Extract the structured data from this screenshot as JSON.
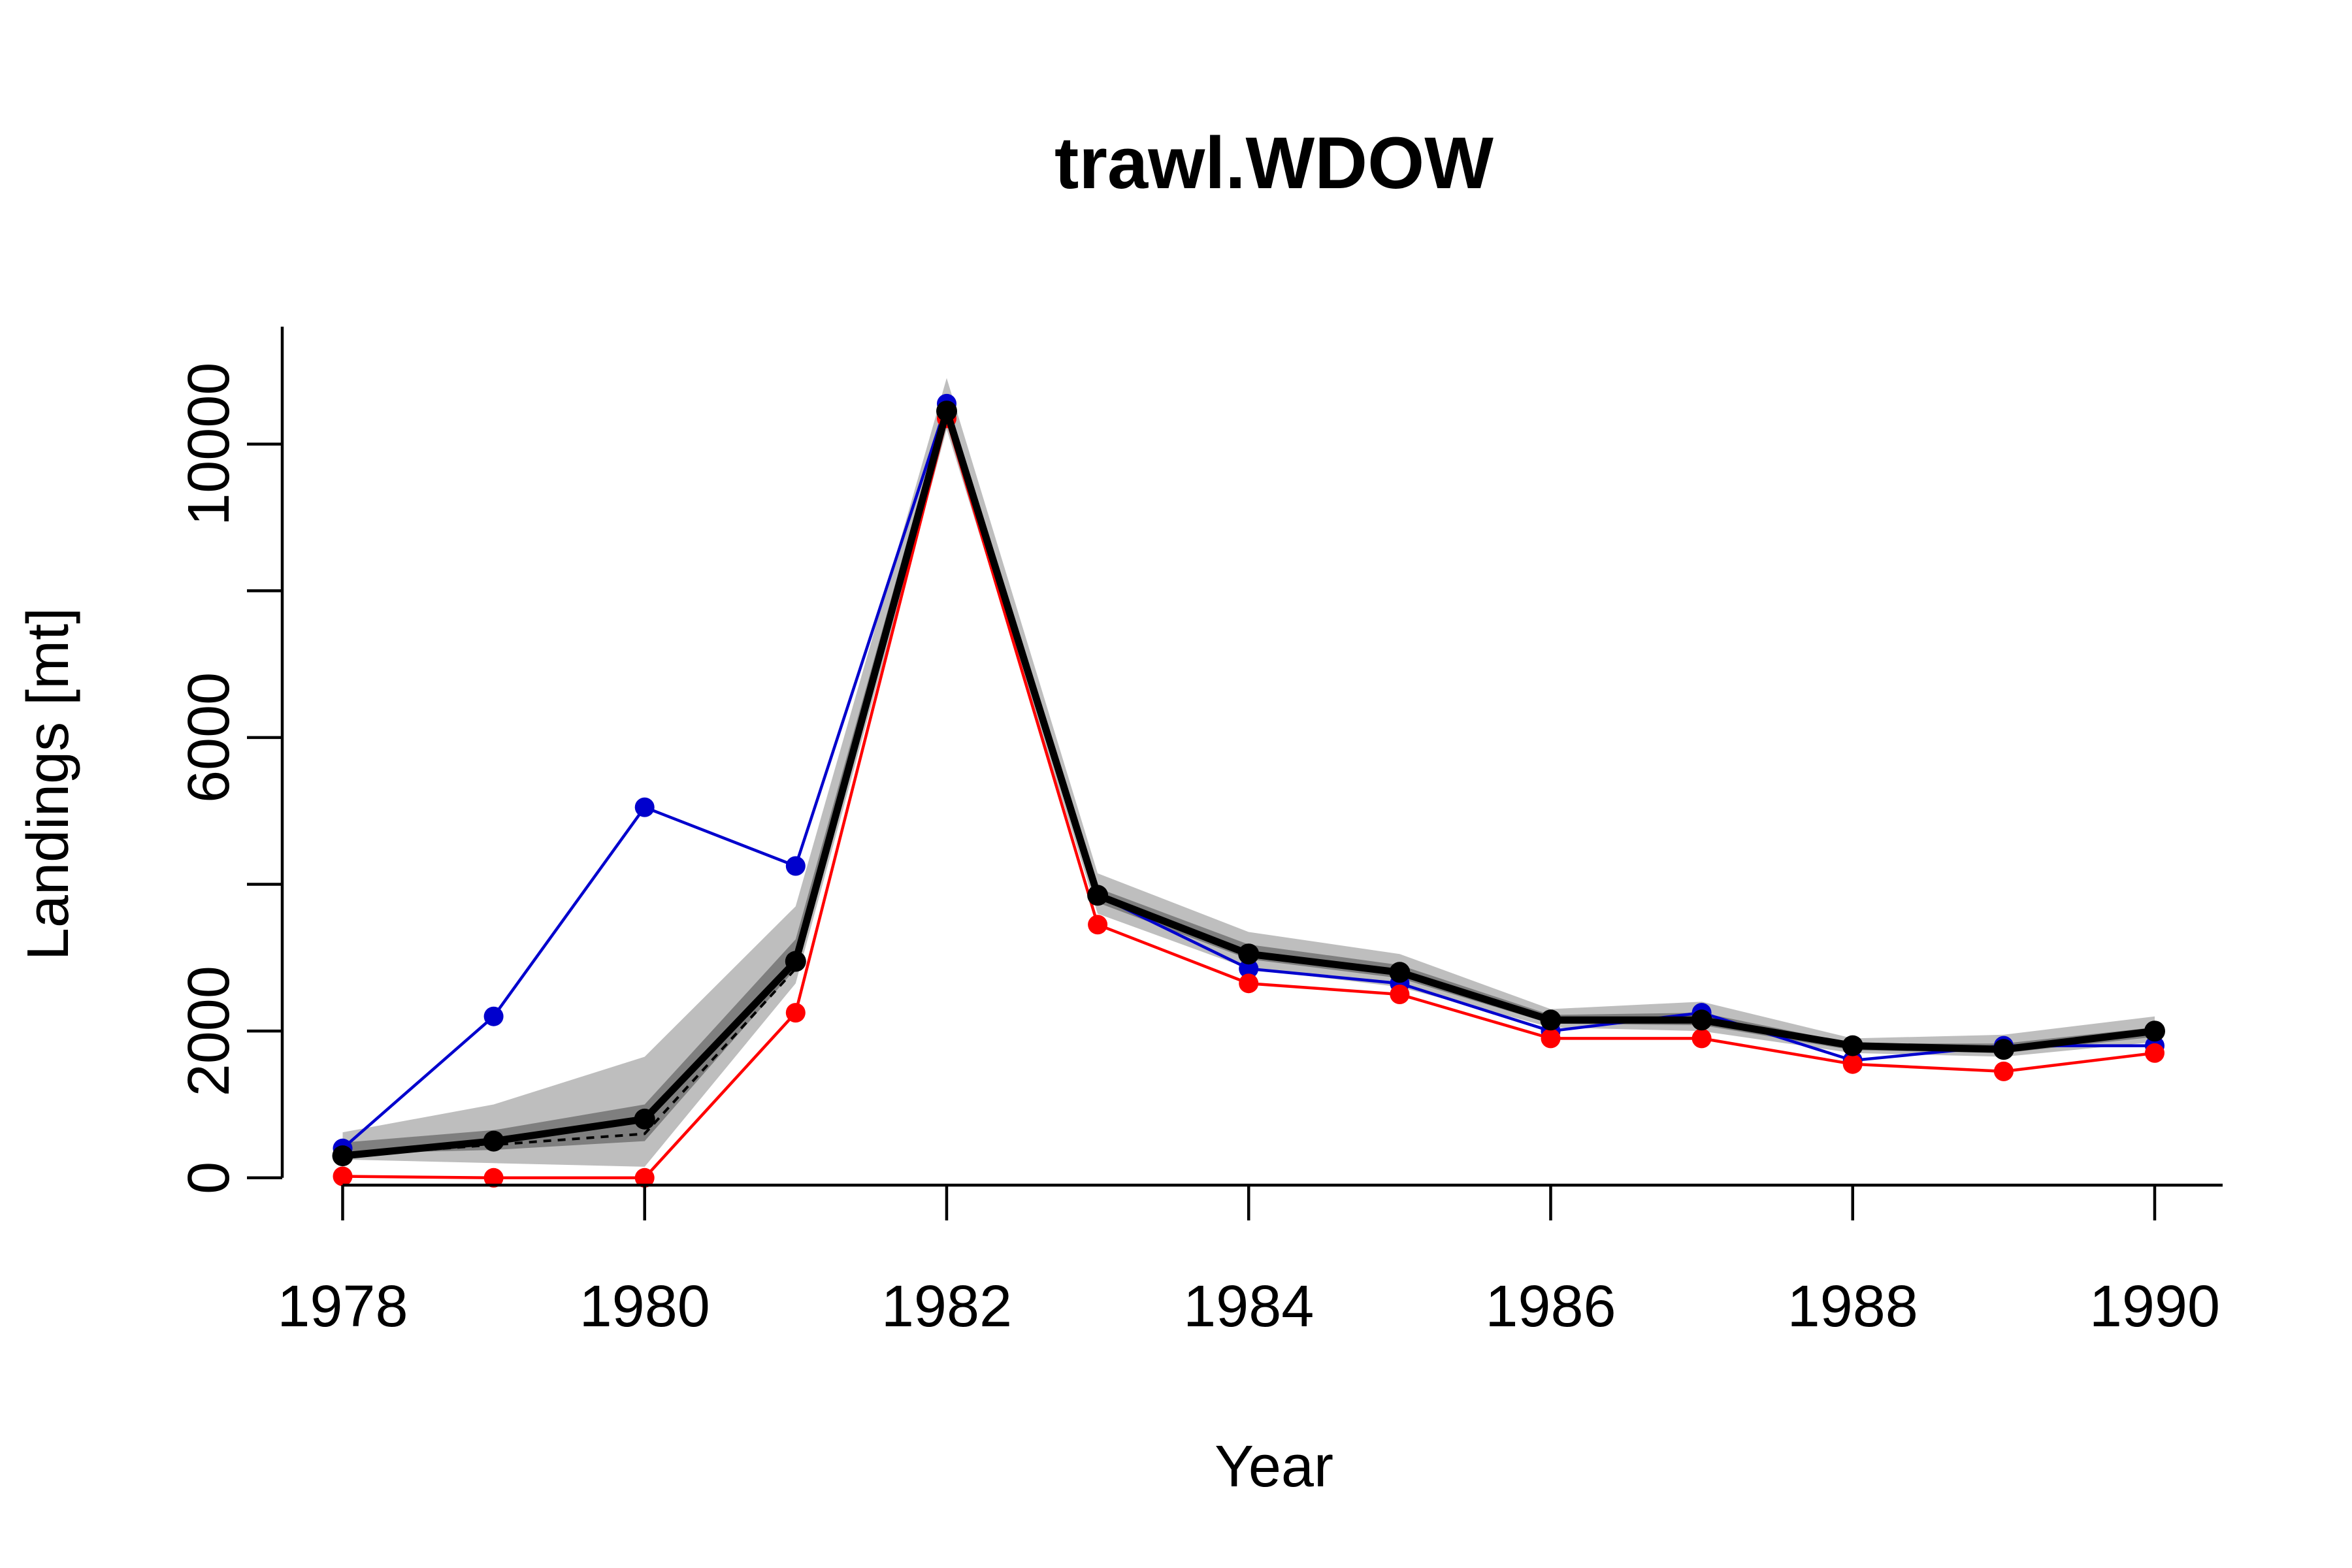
{
  "chart_data": {
    "type": "line",
    "title": "trawl.WDOW",
    "xlabel": "Year",
    "ylabel": "Landings [mt]",
    "xlim": [
      1977.6,
      1990.45
    ],
    "ylim": [
      -100,
      11600
    ],
    "x_ticks": [
      1978,
      1980,
      1982,
      1984,
      1986,
      1988,
      1990
    ],
    "x_tick_labels": [
      "1978",
      "1980",
      "1982",
      "1984",
      "1986",
      "1988",
      "1990"
    ],
    "y_ticks": [
      0,
      2000,
      4000,
      6000,
      8000,
      10000
    ],
    "y_tick_labels": [
      "0",
      "2000",
      "",
      "6000",
      "",
      "10000"
    ],
    "grid": false,
    "x": [
      1978,
      1979,
      1980,
      1981,
      1982,
      1983,
      1984,
      1985,
      1986,
      1987,
      1988,
      1989,
      1990
    ],
    "bands": [
      {
        "color": "#bebebe",
        "lower": [
          250,
          200,
          150,
          2650,
          10200,
          3600,
          2850,
          2600,
          2050,
          2000,
          1700,
          1650,
          1850
        ],
        "upper": [
          620,
          1000,
          1650,
          3700,
          10900,
          4150,
          3350,
          3050,
          2300,
          2400,
          1900,
          1950,
          2200
        ]
      },
      {
        "color": "#7f7f7f",
        "lower": [
          330,
          380,
          500,
          2850,
          10400,
          3750,
          2980,
          2720,
          2100,
          2080,
          1740,
          1700,
          1920
        ],
        "upper": [
          480,
          650,
          1000,
          3250,
          10600,
          3950,
          3180,
          2900,
          2220,
          2250,
          1830,
          1830,
          2050
        ]
      }
    ],
    "series": [
      {
        "color": "#0000cd",
        "values": [
          400,
          2200,
          5050,
          4250,
          10550,
          3850,
          2850,
          2650,
          2000,
          2250,
          1600,
          1800,
          1800
        ]
      },
      {
        "color": "#ff0000",
        "values": [
          20,
          0,
          0,
          2250,
          10350,
          3450,
          2650,
          2500,
          1900,
          1900,
          1550,
          1450,
          1700
        ]
      },
      {
        "color": "#000000",
        "values": [
          300,
          500,
          800,
          2950,
          10450,
          3850,
          3050,
          2800,
          2150,
          2150,
          1800,
          1750,
          2000
        ]
      },
      {
        "color": "#000000",
        "dashed": true,
        "values": [
          300,
          450,
          600,
          2850,
          10450,
          3850,
          3050,
          2800,
          2150,
          2150,
          1800,
          1750,
          2000
        ]
      }
    ]
  }
}
